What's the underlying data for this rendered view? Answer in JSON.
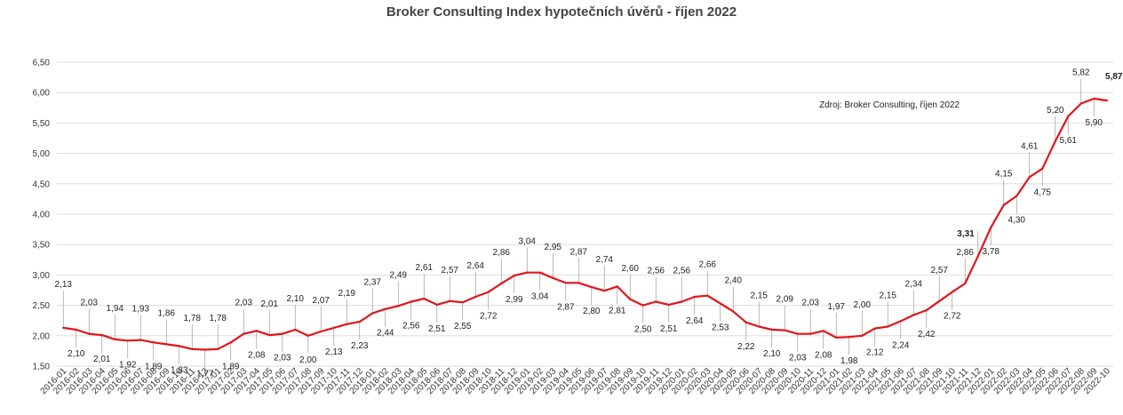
{
  "chart_data": {
    "type": "line",
    "title": "Broker Consulting Index hypotečních úvěrů - říjen 2022",
    "annotation": "Zdroj: Broker Consulting, říjen 2022",
    "xlabel": "",
    "ylabel": "",
    "ylim": [
      1.5,
      6.5
    ],
    "yticks": [
      "1,50",
      "2,00",
      "2,50",
      "3,00",
      "3,50",
      "4,00",
      "4,50",
      "5,00",
      "5,50",
      "6,00",
      "6,50"
    ],
    "grid": true,
    "colors": {
      "line": "#e0161b",
      "grid": "#dddddd",
      "leader": "#999999",
      "last_label": "#e0161b"
    },
    "x": [
      "2016-01",
      "2016-02",
      "2016-03",
      "2016-04",
      "2016-05",
      "2016-06",
      "2016-07",
      "2016-08",
      "2016-09",
      "2016-10",
      "2016-11",
      "2016-12",
      "2017-01",
      "2017-02",
      "2017-03",
      "2017-04",
      "2017-05",
      "2017-06",
      "2017-07",
      "2017-08",
      "2017-09",
      "2017-10",
      "2017-11",
      "2017-12",
      "2018-01",
      "2018-02",
      "2018-03",
      "2018-04",
      "2018-05",
      "2018-06",
      "2018-07",
      "2018-08",
      "2018-09",
      "2018-10",
      "2018-11",
      "2018-12",
      "2019-01",
      "2019-02",
      "2019-03",
      "2019-04",
      "2019-05",
      "2019-06",
      "2019-07",
      "2019-08",
      "2019-09",
      "2019-10",
      "2019-11",
      "2019-12",
      "2020-01",
      "2020-02",
      "2020-03",
      "2020-04",
      "2020-05",
      "2020-06",
      "2020-07",
      "2020-08",
      "2020-09",
      "2020-10",
      "2020-11",
      "2020-12",
      "2021-01",
      "2021-02",
      "2021-03",
      "2021-04",
      "2021-05",
      "2021-06",
      "2021-07",
      "2021-08",
      "2021-09",
      "2021-10",
      "2021-11",
      "2021-12",
      "2022-01",
      "2022-02",
      "2022-03",
      "2022-04",
      "2022-05",
      "2022-06",
      "2022-07",
      "2022-08",
      "2022-09",
      "2022-10"
    ],
    "series": [
      {
        "values": [
          2.13,
          2.1,
          2.03,
          2.01,
          1.94,
          1.92,
          1.93,
          1.89,
          1.86,
          1.83,
          1.78,
          1.77,
          1.78,
          1.89,
          2.03,
          2.08,
          2.01,
          2.03,
          2.1,
          2.0,
          2.07,
          2.13,
          2.19,
          2.23,
          2.37,
          2.44,
          2.49,
          2.56,
          2.61,
          2.51,
          2.57,
          2.55,
          2.64,
          2.72,
          2.86,
          2.99,
          3.04,
          3.04,
          2.95,
          2.87,
          2.87,
          2.8,
          2.74,
          2.81,
          2.6,
          2.5,
          2.56,
          2.51,
          2.56,
          2.64,
          2.66,
          2.53,
          2.4,
          2.22,
          2.15,
          2.1,
          2.09,
          2.03,
          2.03,
          2.08,
          1.97,
          1.98,
          2.0,
          2.12,
          2.15,
          2.24,
          2.34,
          2.42,
          2.57,
          2.72,
          2.86,
          3.31,
          3.78,
          4.15,
          4.3,
          4.61,
          4.75,
          5.2,
          5.61,
          5.82,
          5.9,
          5.87
        ],
        "labels": [
          "2,13",
          "2,10",
          "2,03",
          "2,01",
          "1,94",
          "1,92",
          "1,93",
          "1,89",
          "1,86",
          "1,83",
          "1,78",
          "1,77",
          "1,78",
          "1,89",
          "2,03",
          "2,08",
          "2,01",
          "2,03",
          "2,10",
          "2,00",
          "2,07",
          "2,13",
          "2,19",
          "2,23",
          "2,37",
          "2,44",
          "2,49",
          "2,56",
          "2,61",
          "2,51",
          "2,57",
          "2,55",
          "2,64",
          "2,72",
          "2,86",
          "2,99",
          "3,04",
          "3,04",
          "2,95",
          "2,87",
          "2,87",
          "2,80",
          "2,74",
          "2,81",
          "2,60",
          "2,50",
          "2,56",
          "2,51",
          "2,56",
          "2,64",
          "2,66",
          "2,53",
          "2,40",
          "2,22",
          "2,15",
          "2,10",
          "2,09",
          "2,03",
          "2,03",
          "2,08",
          "1,97",
          "1,98",
          "2,00",
          "2,12",
          "2,15",
          "2,24",
          "2,34",
          "2,42",
          "2,57",
          "2,72",
          "2,86",
          "3,31",
          "3,78",
          "4,15",
          "4,30",
          "4,61",
          "4,75",
          "5,20",
          "5,61",
          "5,82",
          "5,90",
          "5,87"
        ]
      }
    ]
  }
}
